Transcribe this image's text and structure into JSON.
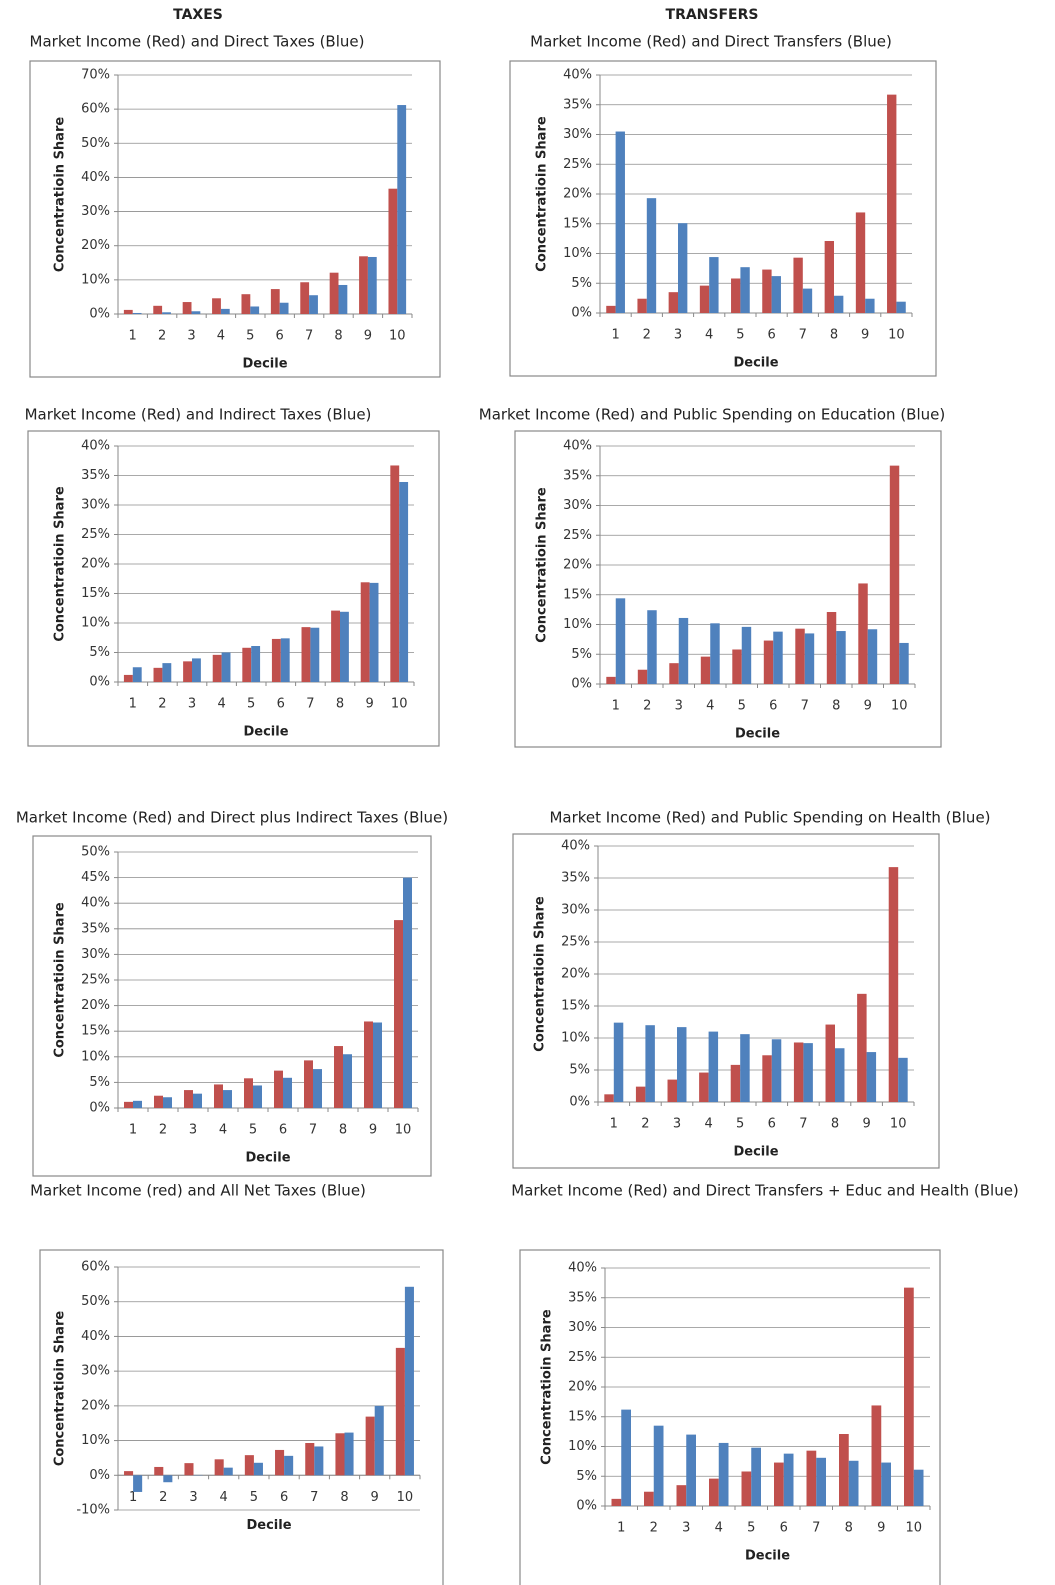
{
  "headers": [
    "TAXES",
    "TRANSFERS"
  ],
  "chart_data": [
    {
      "type": "bar",
      "title": "Market Income (Red) and Direct Taxes (Blue)",
      "xlabel": "Decile",
      "ylabel": "Concentratioin Share",
      "categories": [
        "1",
        "2",
        "3",
        "4",
        "5",
        "6",
        "7",
        "8",
        "9",
        "10"
      ],
      "series": [
        {
          "color": "#c0504d",
          "values": [
            1.2,
            2.4,
            3.5,
            4.6,
            5.8,
            7.3,
            9.3,
            12.1,
            16.9,
            36.7
          ]
        },
        {
          "color": "#4f81bd",
          "values": [
            0.3,
            0.5,
            0.8,
            1.5,
            2.2,
            3.3,
            5.5,
            8.5,
            16.7,
            61.2
          ]
        }
      ],
      "ylim": [
        0,
        70
      ],
      "yticks": [
        {
          "value": 0,
          "label": "0%"
        },
        {
          "value": 10,
          "label": "10%"
        },
        {
          "value": 20,
          "label": "20%"
        },
        {
          "value": 30,
          "label": "30%"
        },
        {
          "value": 40,
          "label": "40%"
        },
        {
          "value": 50,
          "label": "50%"
        },
        {
          "value": 60,
          "label": "60%"
        },
        {
          "value": 70,
          "label": "70%"
        }
      ],
      "grid": true
    },
    {
      "type": "bar",
      "title": "Market Income (Red) and Direct Transfers (Blue)",
      "xlabel": "Decile",
      "ylabel": "Concentratioin Share",
      "categories": [
        "1",
        "2",
        "3",
        "4",
        "5",
        "6",
        "7",
        "8",
        "9",
        "10"
      ],
      "series": [
        {
          "color": "#c0504d",
          "values": [
            1.2,
            2.4,
            3.5,
            4.6,
            5.8,
            7.3,
            9.3,
            12.1,
            16.9,
            36.7
          ]
        },
        {
          "color": "#4f81bd",
          "values": [
            30.5,
            19.3,
            15.1,
            9.4,
            7.7,
            6.2,
            4.1,
            2.9,
            2.4,
            1.9
          ]
        }
      ],
      "ylim": [
        0,
        40
      ],
      "yticks": [
        {
          "value": 0,
          "label": "0%"
        },
        {
          "value": 5,
          "label": "5%"
        },
        {
          "value": 10,
          "label": "10%"
        },
        {
          "value": 15,
          "label": "15%"
        },
        {
          "value": 20,
          "label": "20%"
        },
        {
          "value": 25,
          "label": "25%"
        },
        {
          "value": 30,
          "label": "30%"
        },
        {
          "value": 35,
          "label": "35%"
        },
        {
          "value": 40,
          "label": "40%"
        }
      ],
      "grid": true
    },
    {
      "type": "bar",
      "title": "Market Income (Red) and Indirect Taxes (Blue)",
      "xlabel": "Decile",
      "ylabel": "Concentratioin Share",
      "categories": [
        "1",
        "2",
        "3",
        "4",
        "5",
        "6",
        "7",
        "8",
        "9",
        "10"
      ],
      "series": [
        {
          "color": "#c0504d",
          "values": [
            1.2,
            2.4,
            3.5,
            4.6,
            5.8,
            7.3,
            9.3,
            12.1,
            16.9,
            36.7
          ]
        },
        {
          "color": "#4f81bd",
          "values": [
            2.5,
            3.2,
            4.0,
            5.0,
            6.1,
            7.4,
            9.2,
            11.9,
            16.8,
            33.9
          ]
        }
      ],
      "ylim": [
        0,
        40
      ],
      "yticks": [
        {
          "value": 0,
          "label": "0%"
        },
        {
          "value": 5,
          "label": "5%"
        },
        {
          "value": 10,
          "label": "10%"
        },
        {
          "value": 15,
          "label": "15%"
        },
        {
          "value": 20,
          "label": "20%"
        },
        {
          "value": 25,
          "label": "25%"
        },
        {
          "value": 30,
          "label": "30%"
        },
        {
          "value": 35,
          "label": "35%"
        },
        {
          "value": 40,
          "label": "40%"
        }
      ],
      "grid": true
    },
    {
      "type": "bar",
      "title": "Market Income (Red) and Public Spending on Education (Blue)",
      "xlabel": "Decile",
      "ylabel": "Concentratioin Share",
      "categories": [
        "1",
        "2",
        "3",
        "4",
        "5",
        "6",
        "7",
        "8",
        "9",
        "10"
      ],
      "series": [
        {
          "color": "#c0504d",
          "values": [
            1.2,
            2.4,
            3.5,
            4.6,
            5.8,
            7.3,
            9.3,
            12.1,
            16.9,
            36.7
          ]
        },
        {
          "color": "#4f81bd",
          "values": [
            14.4,
            12.4,
            11.1,
            10.2,
            9.6,
            8.8,
            8.5,
            8.9,
            9.2,
            6.9
          ]
        }
      ],
      "ylim": [
        0,
        40
      ],
      "yticks": [
        {
          "value": 0,
          "label": "0%"
        },
        {
          "value": 5,
          "label": "5%"
        },
        {
          "value": 10,
          "label": "10%"
        },
        {
          "value": 15,
          "label": "15%"
        },
        {
          "value": 20,
          "label": "20%"
        },
        {
          "value": 25,
          "label": "25%"
        },
        {
          "value": 30,
          "label": "30%"
        },
        {
          "value": 35,
          "label": "35%"
        },
        {
          "value": 40,
          "label": "40%"
        }
      ],
      "grid": true
    },
    {
      "type": "bar",
      "title": "Market Income (Red) and Direct plus Indirect Taxes (Blue)",
      "xlabel": "Decile",
      "ylabel": "Concentratioin Share",
      "categories": [
        "1",
        "2",
        "3",
        "4",
        "5",
        "6",
        "7",
        "8",
        "9",
        "10"
      ],
      "series": [
        {
          "color": "#c0504d",
          "values": [
            1.2,
            2.4,
            3.5,
            4.6,
            5.8,
            7.3,
            9.3,
            12.1,
            16.9,
            36.7
          ]
        },
        {
          "color": "#4f81bd",
          "values": [
            1.4,
            2.1,
            2.8,
            3.5,
            4.4,
            5.9,
            7.6,
            10.5,
            16.7,
            45.0
          ]
        }
      ],
      "ylim": [
        0,
        50
      ],
      "yticks": [
        {
          "value": 0,
          "label": "0%"
        },
        {
          "value": 5,
          "label": "5%"
        },
        {
          "value": 10,
          "label": "10%"
        },
        {
          "value": 15,
          "label": "15%"
        },
        {
          "value": 20,
          "label": "20%"
        },
        {
          "value": 25,
          "label": "25%"
        },
        {
          "value": 30,
          "label": "30%"
        },
        {
          "value": 35,
          "label": "35%"
        },
        {
          "value": 40,
          "label": "40%"
        },
        {
          "value": 45,
          "label": "45%"
        },
        {
          "value": 50,
          "label": "50%"
        }
      ],
      "grid": true
    },
    {
      "type": "bar",
      "title": "Market Income (Red) and Public Spending on Health (Blue)",
      "xlabel": "Decile",
      "ylabel": "Concentratioin Share",
      "categories": [
        "1",
        "2",
        "3",
        "4",
        "5",
        "6",
        "7",
        "8",
        "9",
        "10"
      ],
      "series": [
        {
          "color": "#c0504d",
          "values": [
            1.2,
            2.4,
            3.5,
            4.6,
            5.8,
            7.3,
            9.3,
            12.1,
            16.9,
            36.7
          ]
        },
        {
          "color": "#4f81bd",
          "values": [
            12.4,
            12.0,
            11.7,
            11.0,
            10.6,
            9.8,
            9.2,
            8.4,
            7.8,
            6.9
          ]
        }
      ],
      "ylim": [
        0,
        40
      ],
      "yticks": [
        {
          "value": 0,
          "label": "0%"
        },
        {
          "value": 5,
          "label": "5%"
        },
        {
          "value": 10,
          "label": "10%"
        },
        {
          "value": 15,
          "label": "15%"
        },
        {
          "value": 20,
          "label": "20%"
        },
        {
          "value": 25,
          "label": "25%"
        },
        {
          "value": 30,
          "label": "30%"
        },
        {
          "value": 35,
          "label": "35%"
        },
        {
          "value": 40,
          "label": "40%"
        }
      ],
      "grid": true
    },
    {
      "type": "bar",
      "title": "Market Income (red) and All Net Taxes (Blue)",
      "xlabel": "Decile",
      "ylabel": "Concentratioin Share",
      "categories": [
        "1",
        "2",
        "3",
        "4",
        "5",
        "6",
        "7",
        "8",
        "9",
        "10"
      ],
      "series": [
        {
          "color": "#c0504d",
          "values": [
            1.2,
            2.4,
            3.5,
            4.6,
            5.8,
            7.3,
            9.3,
            12.1,
            16.9,
            36.7
          ]
        },
        {
          "color": "#4f81bd",
          "values": [
            -4.8,
            -2.0,
            0.1,
            2.2,
            3.6,
            5.6,
            8.3,
            12.3,
            20.0,
            54.3
          ]
        }
      ],
      "ylim": [
        -10,
        60
      ],
      "yticks": [
        {
          "value": -10,
          "label": "-10%"
        },
        {
          "value": 0,
          "label": "0%"
        },
        {
          "value": 10,
          "label": "10%"
        },
        {
          "value": 20,
          "label": "20%"
        },
        {
          "value": 30,
          "label": "30%"
        },
        {
          "value": 40,
          "label": "40%"
        },
        {
          "value": 50,
          "label": "50%"
        },
        {
          "value": 60,
          "label": "60%"
        }
      ],
      "grid": true
    },
    {
      "type": "bar",
      "title": "Market Income (Red) and Direct Transfers + Educ and Health (Blue)",
      "xlabel": "Decile",
      "ylabel": "Concentratioin Share",
      "categories": [
        "1",
        "2",
        "3",
        "4",
        "5",
        "6",
        "7",
        "8",
        "9",
        "10"
      ],
      "series": [
        {
          "color": "#c0504d",
          "values": [
            1.2,
            2.4,
            3.5,
            4.6,
            5.8,
            7.3,
            9.3,
            12.1,
            16.9,
            36.7
          ]
        },
        {
          "color": "#4f81bd",
          "values": [
            16.2,
            13.5,
            12.0,
            10.6,
            9.8,
            8.8,
            8.1,
            7.6,
            7.3,
            6.1
          ]
        }
      ],
      "ylim": [
        0,
        40
      ],
      "yticks": [
        {
          "value": 0,
          "label": "0%"
        },
        {
          "value": 5,
          "label": "5%"
        },
        {
          "value": 10,
          "label": "10%"
        },
        {
          "value": 15,
          "label": "15%"
        },
        {
          "value": 20,
          "label": "20%"
        },
        {
          "value": 25,
          "label": "25%"
        },
        {
          "value": 30,
          "label": "30%"
        },
        {
          "value": 35,
          "label": "35%"
        },
        {
          "value": 40,
          "label": "40%"
        }
      ],
      "grid": true
    }
  ]
}
